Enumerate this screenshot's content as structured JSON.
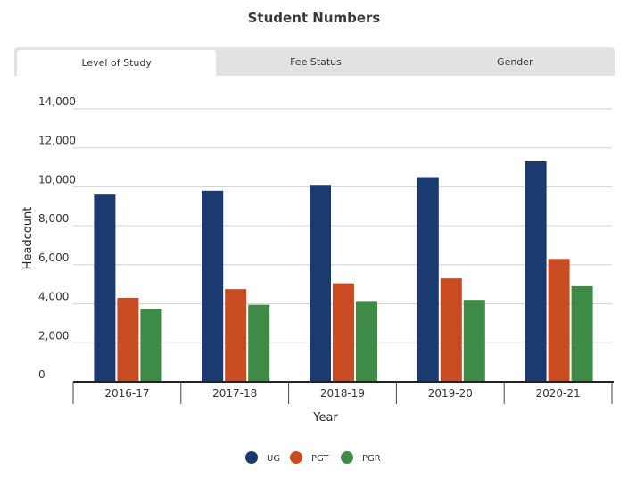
{
  "title": "Student Numbers",
  "tabs": [
    {
      "label": "Level of Study",
      "active": true
    },
    {
      "label": "Fee Status",
      "active": false
    },
    {
      "label": "Gender",
      "active": false
    }
  ],
  "chart_data": {
    "type": "bar",
    "title": "Student Numbers",
    "xlabel": "Year",
    "ylabel": "Headcount",
    "categories": [
      "2016-17",
      "2017-18",
      "2018-19",
      "2019-20",
      "2020-21"
    ],
    "series": [
      {
        "name": "UG",
        "color": "#1b3a70",
        "values": [
          9600,
          9800,
          10100,
          10500,
          11300
        ]
      },
      {
        "name": "PGT",
        "color": "#c84b22",
        "values": [
          4300,
          4750,
          5050,
          5300,
          6300
        ]
      },
      {
        "name": "PGR",
        "color": "#3d8b47",
        "values": [
          3750,
          3950,
          4100,
          4200,
          4900
        ]
      }
    ],
    "ylim": [
      0,
      14000
    ],
    "yticks": [
      0,
      2000,
      4000,
      6000,
      8000,
      10000,
      12000,
      14000
    ],
    "ytick_labels": [
      "0",
      "2,000",
      "4,000",
      "6,000",
      "8,000",
      "10,000",
      "12,000",
      "14,000"
    ],
    "grid": true,
    "legend_position": "bottom"
  }
}
